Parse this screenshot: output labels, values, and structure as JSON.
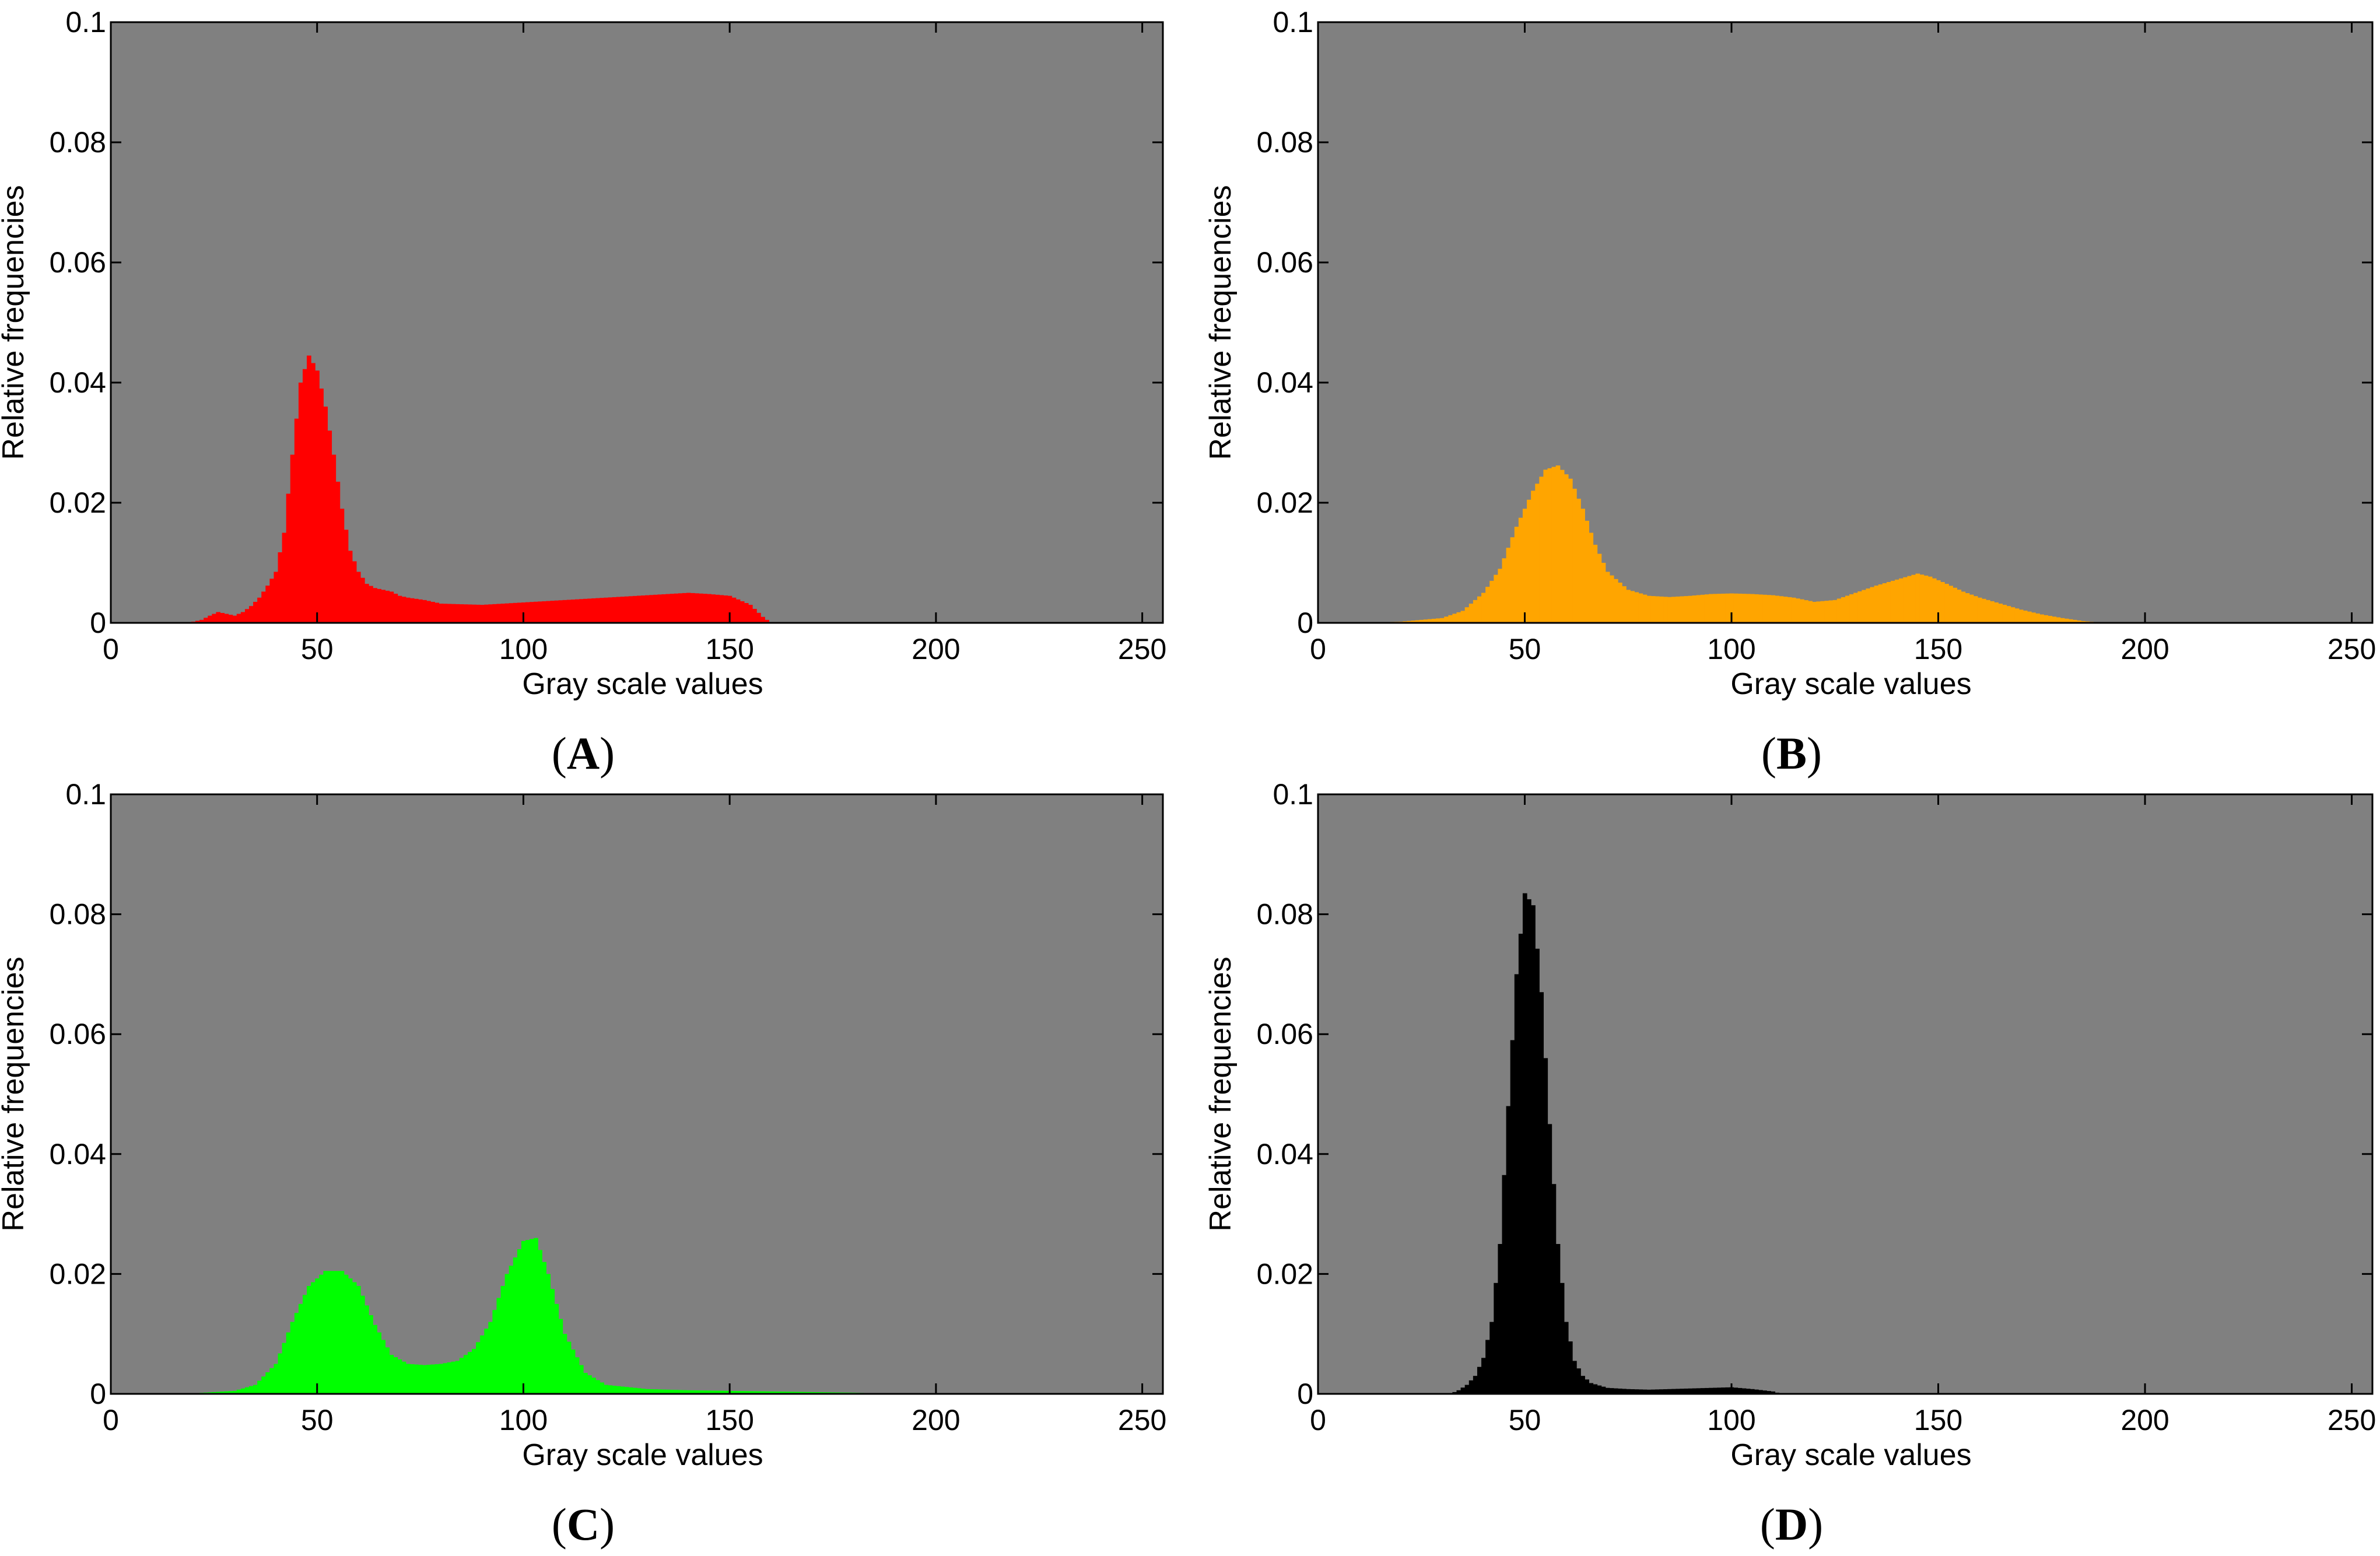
{
  "panels_meta": {
    "background_color": "#808080",
    "axis_color": "#000000"
  },
  "chart_data": [
    {
      "type": "bar",
      "caption": "A",
      "color": "#ff0000",
      "xlabel": "Gray scale values",
      "ylabel": "Relative frequencies",
      "xlim": [
        0,
        255
      ],
      "ylim": [
        0,
        0.1
      ],
      "xticks": [
        0,
        50,
        100,
        150,
        200,
        250
      ],
      "yticks": [
        "0",
        "0.02",
        "0.04",
        "0.06",
        "0.08",
        "0.1"
      ],
      "x_start": 18,
      "x": [
        18,
        20,
        22,
        24,
        26,
        28,
        30,
        32,
        34,
        36,
        38,
        40,
        42,
        44,
        46,
        48,
        50,
        52,
        54,
        56,
        58,
        60,
        62,
        64,
        66,
        68,
        70,
        72,
        74,
        76,
        78,
        80,
        85,
        90,
        95,
        100,
        105,
        110,
        115,
        120,
        125,
        130,
        135,
        140,
        145,
        150,
        155,
        158,
        160
      ],
      "values": [
        0.0,
        0.0002,
        0.0005,
        0.0012,
        0.0018,
        0.0015,
        0.0012,
        0.0018,
        0.0028,
        0.0042,
        0.0062,
        0.0085,
        0.015,
        0.028,
        0.04,
        0.0445,
        0.042,
        0.036,
        0.028,
        0.019,
        0.012,
        0.0085,
        0.0065,
        0.0058,
        0.0055,
        0.0052,
        0.0045,
        0.0042,
        0.004,
        0.0038,
        0.0035,
        0.0032,
        0.0031,
        0.003,
        0.0032,
        0.0034,
        0.0036,
        0.0038,
        0.004,
        0.0042,
        0.0044,
        0.0046,
        0.0048,
        0.005,
        0.0048,
        0.0045,
        0.003,
        0.001,
        0.0
      ]
    },
    {
      "type": "bar",
      "caption": "B",
      "color": "#ffa500",
      "xlabel": "Gray scale values",
      "ylabel": "Relative frequencies",
      "xlim": [
        0,
        255
      ],
      "ylim": [
        0,
        0.1
      ],
      "xticks": [
        0,
        50,
        100,
        150,
        200,
        250
      ],
      "yticks": [
        "0",
        "0.02",
        "0.04",
        "0.06",
        "0.08",
        "0.1"
      ],
      "x": [
        10,
        20,
        30,
        35,
        40,
        44,
        48,
        52,
        55,
        58,
        61,
        64,
        67,
        70,
        75,
        80,
        85,
        90,
        95,
        100,
        105,
        110,
        115,
        120,
        125,
        130,
        135,
        140,
        145,
        148,
        152,
        156,
        160,
        165,
        170,
        175,
        180,
        185,
        190
      ],
      "values": [
        0.0,
        0.0002,
        0.0008,
        0.002,
        0.005,
        0.009,
        0.016,
        0.022,
        0.0255,
        0.0262,
        0.024,
        0.019,
        0.013,
        0.0085,
        0.0055,
        0.0045,
        0.0043,
        0.0045,
        0.0048,
        0.0049,
        0.0048,
        0.0046,
        0.0042,
        0.0035,
        0.0038,
        0.005,
        0.0062,
        0.0072,
        0.0082,
        0.0077,
        0.0065,
        0.0052,
        0.0042,
        0.0032,
        0.0022,
        0.0014,
        0.0008,
        0.0003,
        0.0
      ]
    },
    {
      "type": "bar",
      "caption": "C",
      "color": "#00ff00",
      "xlabel": "Gray scale values",
      "ylabel": "Relative frequencies",
      "xlim": [
        0,
        255
      ],
      "ylim": [
        0,
        0.1
      ],
      "xticks": [
        0,
        50,
        100,
        150,
        200,
        250
      ],
      "yticks": [
        "0",
        "0.02",
        "0.04",
        "0.06",
        "0.08",
        "0.1"
      ],
      "x": [
        10,
        20,
        30,
        35,
        40,
        44,
        48,
        52,
        56,
        60,
        64,
        68,
        72,
        76,
        80,
        84,
        88,
        92,
        96,
        100,
        103,
        106,
        110,
        115,
        120,
        130,
        140,
        150,
        160,
        170,
        180,
        190
      ],
      "values": [
        0.0,
        0.0001,
        0.0005,
        0.0015,
        0.005,
        0.012,
        0.018,
        0.0205,
        0.0205,
        0.018,
        0.0115,
        0.0065,
        0.005,
        0.0048,
        0.005,
        0.0055,
        0.0075,
        0.012,
        0.02,
        0.0255,
        0.026,
        0.02,
        0.01,
        0.0035,
        0.0015,
        0.0008,
        0.0006,
        0.0005,
        0.0004,
        0.0003,
        0.0002,
        0.0
      ]
    },
    {
      "type": "bar",
      "caption": "D",
      "color": "#000000",
      "xlabel": "Gray scale values",
      "ylabel": "Relative frequencies",
      "xlim": [
        0,
        255
      ],
      "ylim": [
        0,
        0.1
      ],
      "xticks": [
        0,
        50,
        100,
        150,
        200,
        250
      ],
      "yticks": [
        "0",
        "0.02",
        "0.04",
        "0.06",
        "0.08",
        "0.1"
      ],
      "x": [
        32,
        34,
        36,
        38,
        40,
        42,
        44,
        46,
        48,
        50,
        52,
        54,
        56,
        58,
        60,
        62,
        64,
        66,
        70,
        75,
        80,
        85,
        90,
        95,
        100,
        105,
        110,
        112
      ],
      "values": [
        0.0,
        0.0006,
        0.0015,
        0.003,
        0.006,
        0.012,
        0.025,
        0.048,
        0.07,
        0.0835,
        0.0815,
        0.067,
        0.045,
        0.025,
        0.012,
        0.0055,
        0.003,
        0.0018,
        0.001,
        0.0008,
        0.0007,
        0.0008,
        0.0009,
        0.001,
        0.0011,
        0.0008,
        0.0004,
        0.0
      ]
    }
  ]
}
